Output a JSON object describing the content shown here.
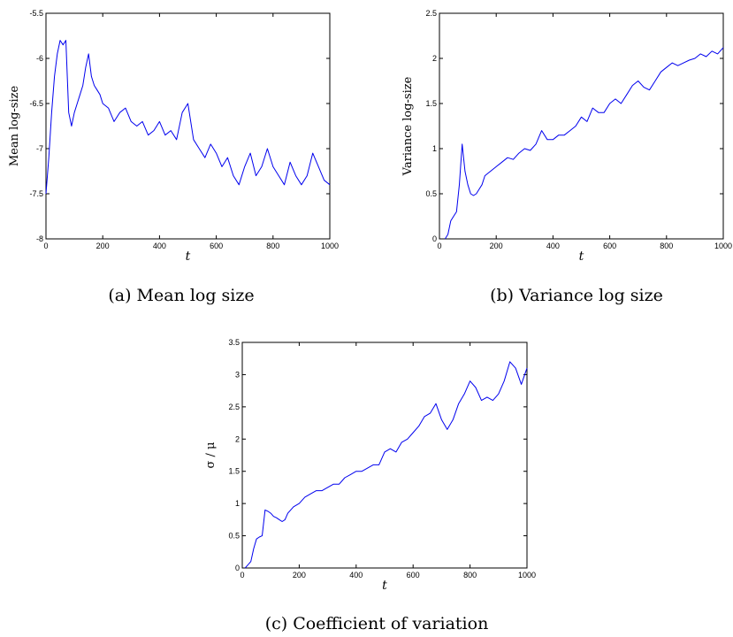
{
  "chart_data": [
    {
      "type": "line",
      "xlabel": "t",
      "ylabel": "Mean log-size",
      "caption": "(a) Mean log size",
      "xlim": [
        0,
        1000
      ],
      "ylim": [
        -8,
        -5.5
      ],
      "xticks": [
        "0",
        "200",
        "400",
        "600",
        "800",
        "1000"
      ],
      "yticks": [
        "-8",
        "-7.5",
        "-7",
        "-6.5",
        "-6",
        "-5.5"
      ],
      "series_color": "#0000ee",
      "series": [
        {
          "x": [
            0,
            10,
            20,
            30,
            40,
            50,
            60,
            70,
            80,
            90,
            100,
            110,
            120,
            130,
            140,
            150,
            160,
            170,
            180,
            190,
            200,
            220,
            240,
            260,
            280,
            300,
            320,
            340,
            360,
            380,
            400,
            420,
            440,
            460,
            480,
            500,
            520,
            540,
            560,
            580,
            600,
            620,
            640,
            660,
            680,
            700,
            720,
            740,
            760,
            780,
            800,
            820,
            840,
            860,
            880,
            900,
            920,
            940,
            960,
            980,
            1000
          ],
          "y": [
            -7.5,
            -7.1,
            -6.6,
            -6.2,
            -5.95,
            -5.8,
            -5.85,
            -5.8,
            -6.6,
            -6.75,
            -6.6,
            -6.5,
            -6.4,
            -6.3,
            -6.1,
            -5.95,
            -6.2,
            -6.3,
            -6.35,
            -6.4,
            -6.5,
            -6.55,
            -6.7,
            -6.6,
            -6.55,
            -6.7,
            -6.75,
            -6.7,
            -6.85,
            -6.8,
            -6.7,
            -6.85,
            -6.8,
            -6.9,
            -6.6,
            -6.5,
            -6.9,
            -7.0,
            -7.1,
            -6.95,
            -7.05,
            -7.2,
            -7.1,
            -7.3,
            -7.4,
            -7.2,
            -7.05,
            -7.3,
            -7.2,
            -7.0,
            -7.2,
            -7.3,
            -7.4,
            -7.15,
            -7.3,
            -7.4,
            -7.3,
            -7.05,
            -7.2,
            -7.35,
            -7.4
          ]
        }
      ]
    },
    {
      "type": "line",
      "xlabel": "t",
      "ylabel": "Variance log-size",
      "caption": "(b) Variance log size",
      "xlim": [
        0,
        1000
      ],
      "ylim": [
        0,
        2.5
      ],
      "xticks": [
        "0",
        "200",
        "400",
        "600",
        "800",
        "1000"
      ],
      "yticks": [
        "0",
        "0.5",
        "1",
        "1.5",
        "2",
        "2.5"
      ],
      "series_color": "#0000ee",
      "series": [
        {
          "x": [
            20,
            30,
            40,
            50,
            60,
            70,
            80,
            90,
            100,
            110,
            120,
            130,
            140,
            150,
            160,
            180,
            200,
            220,
            240,
            260,
            280,
            300,
            320,
            340,
            360,
            380,
            400,
            420,
            440,
            460,
            480,
            500,
            520,
            540,
            560,
            580,
            600,
            620,
            640,
            660,
            680,
            700,
            720,
            740,
            760,
            780,
            800,
            820,
            840,
            860,
            880,
            900,
            920,
            940,
            960,
            980,
            1000
          ],
          "y": [
            0.0,
            0.05,
            0.2,
            0.25,
            0.3,
            0.6,
            1.05,
            0.75,
            0.6,
            0.5,
            0.48,
            0.5,
            0.55,
            0.6,
            0.7,
            0.75,
            0.8,
            0.85,
            0.9,
            0.88,
            0.95,
            1.0,
            0.98,
            1.05,
            1.2,
            1.1,
            1.1,
            1.15,
            1.15,
            1.2,
            1.25,
            1.35,
            1.3,
            1.45,
            1.4,
            1.4,
            1.5,
            1.55,
            1.5,
            1.6,
            1.7,
            1.75,
            1.68,
            1.65,
            1.75,
            1.85,
            1.9,
            1.95,
            1.92,
            1.95,
            1.98,
            2.0,
            2.05,
            2.02,
            2.08,
            2.05,
            2.12
          ]
        }
      ]
    },
    {
      "type": "line",
      "xlabel": "t",
      "ylabel": "σ / μ",
      "caption": "(c) Coefficient of variation",
      "xlim": [
        0,
        1000
      ],
      "ylim": [
        0,
        3.5
      ],
      "xticks": [
        "0",
        "200",
        "400",
        "600",
        "800",
        "1000"
      ],
      "yticks": [
        "0",
        "0.5",
        "1",
        "1.5",
        "2",
        "2.5",
        "3",
        "3.5"
      ],
      "series_color": "#0000ee",
      "series": [
        {
          "x": [
            10,
            20,
            30,
            40,
            50,
            60,
            70,
            80,
            90,
            100,
            110,
            120,
            130,
            140,
            150,
            160,
            180,
            200,
            220,
            240,
            260,
            280,
            300,
            320,
            340,
            360,
            380,
            400,
            420,
            440,
            460,
            480,
            500,
            520,
            540,
            560,
            580,
            600,
            620,
            640,
            660,
            680,
            700,
            720,
            740,
            760,
            780,
            800,
            820,
            840,
            860,
            880,
            900,
            920,
            940,
            960,
            980,
            1000
          ],
          "y": [
            0.0,
            0.05,
            0.1,
            0.3,
            0.45,
            0.48,
            0.5,
            0.9,
            0.88,
            0.85,
            0.8,
            0.78,
            0.75,
            0.72,
            0.75,
            0.85,
            0.95,
            1.0,
            1.1,
            1.15,
            1.2,
            1.2,
            1.25,
            1.3,
            1.3,
            1.4,
            1.45,
            1.5,
            1.5,
            1.55,
            1.6,
            1.6,
            1.8,
            1.85,
            1.8,
            1.95,
            2.0,
            2.1,
            2.2,
            2.35,
            2.4,
            2.55,
            2.3,
            2.15,
            2.3,
            2.55,
            2.7,
            2.9,
            2.8,
            2.6,
            2.65,
            2.6,
            2.7,
            2.9,
            3.2,
            3.1,
            2.85,
            3.1
          ]
        }
      ]
    }
  ]
}
